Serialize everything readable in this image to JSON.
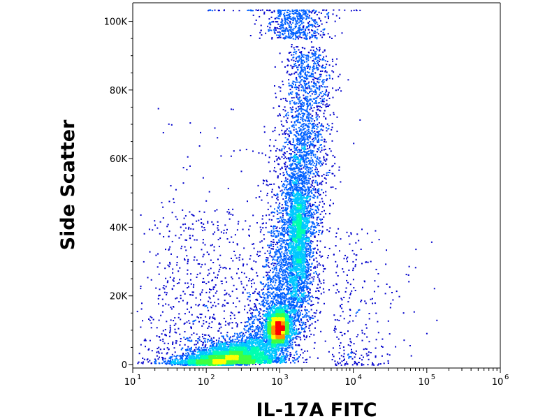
{
  "chart_data": {
    "type": "scatter",
    "subtype": "flow-cytometry-density-dot-plot",
    "xlabel": "IL-17A FITC",
    "ylabel": "Side Scatter",
    "x_scale": "log",
    "xlim": [
      10,
      1000000
    ],
    "x_ticks": [
      {
        "value": 10,
        "base": "10",
        "exp": "1"
      },
      {
        "value": 100,
        "base": "10",
        "exp": "2"
      },
      {
        "value": 1000,
        "base": "10",
        "exp": "3"
      },
      {
        "value": 10000,
        "base": "10",
        "exp": "4"
      },
      {
        "value": 100000,
        "base": "10",
        "exp": "5"
      },
      {
        "value": 1000000,
        "base": "10",
        "exp": "6"
      }
    ],
    "y_scale": "linear",
    "ylim": [
      0,
      105000
    ],
    "y_ticks": [
      {
        "value": 0,
        "label": "0"
      },
      {
        "value": 20000,
        "label": "20K"
      },
      {
        "value": 40000,
        "label": "40K"
      },
      {
        "value": 60000,
        "label": "60K"
      },
      {
        "value": 80000,
        "label": "80K"
      },
      {
        "value": 100000,
        "label": "100K"
      }
    ],
    "grid": false,
    "legend": "none",
    "density_colormap": [
      "#0000cc",
      "#0060ff",
      "#00c8ff",
      "#00ffb0",
      "#40ff40",
      "#ffff00",
      "#ff9000",
      "#ff0000"
    ],
    "populations": [
      {
        "center_x": 950,
        "center_y": 10500,
        "peak": "red core"
      },
      {
        "center_x": 1800,
        "center_y": 38000,
        "peak": "cyan shoulder"
      }
    ],
    "ridge": [
      {
        "x": 120,
        "y": 2500
      },
      {
        "x": 300,
        "y": 4500
      },
      {
        "x": 700,
        "y": 8000
      },
      {
        "x": 1000,
        "y": 11000
      },
      {
        "x": 1600,
        "y": 25000
      },
      {
        "x": 2000,
        "y": 40000
      },
      {
        "x": 2400,
        "y": 60000
      },
      {
        "x": 2600,
        "y": 80000
      },
      {
        "x": 2800,
        "y": 100000
      }
    ]
  }
}
